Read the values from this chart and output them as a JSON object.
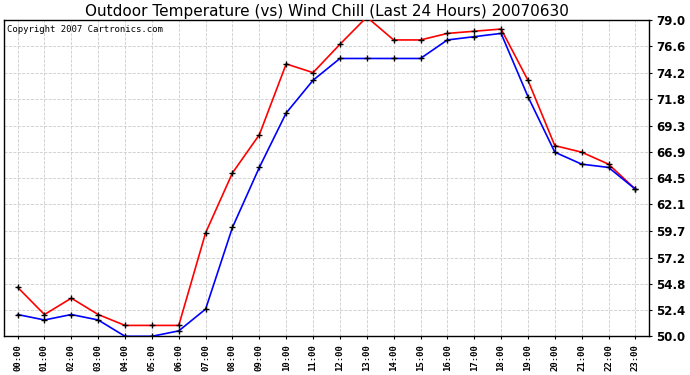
{
  "title": "Outdoor Temperature (vs) Wind Chill (Last 24 Hours) 20070630",
  "copyright": "Copyright 2007 Cartronics.com",
  "x_labels": [
    "00:00",
    "01:00",
    "02:00",
    "03:00",
    "04:00",
    "05:00",
    "06:00",
    "07:00",
    "08:00",
    "09:00",
    "10:00",
    "11:00",
    "12:00",
    "13:00",
    "14:00",
    "15:00",
    "16:00",
    "17:00",
    "18:00",
    "19:00",
    "20:00",
    "21:00",
    "22:00",
    "23:00"
  ],
  "temp_red": [
    54.5,
    52.0,
    53.5,
    52.0,
    51.0,
    51.0,
    51.0,
    59.5,
    65.0,
    68.5,
    75.0,
    74.2,
    76.8,
    79.3,
    77.2,
    77.2,
    77.8,
    78.0,
    78.2,
    73.5,
    67.5,
    66.9,
    65.8,
    63.5
  ],
  "wind_blue": [
    52.0,
    51.5,
    52.0,
    51.5,
    50.0,
    50.0,
    50.5,
    52.5,
    60.0,
    65.5,
    70.5,
    73.5,
    75.5,
    75.5,
    75.5,
    75.5,
    77.2,
    77.5,
    77.8,
    72.0,
    66.9,
    65.8,
    65.5,
    63.5
  ],
  "ylim": [
    50.0,
    79.0
  ],
  "yticks": [
    50.0,
    52.4,
    54.8,
    57.2,
    59.7,
    62.1,
    64.5,
    66.9,
    69.3,
    71.8,
    74.2,
    76.6,
    79.0
  ],
  "bg_color": "#ffffff",
  "grid_color": "#cccccc",
  "red_color": "#ff0000",
  "blue_color": "#0000ff",
  "title_fontsize": 11,
  "copyright_fontsize": 6.5,
  "ytick_fontsize": 8.5,
  "xtick_fontsize": 6.5
}
